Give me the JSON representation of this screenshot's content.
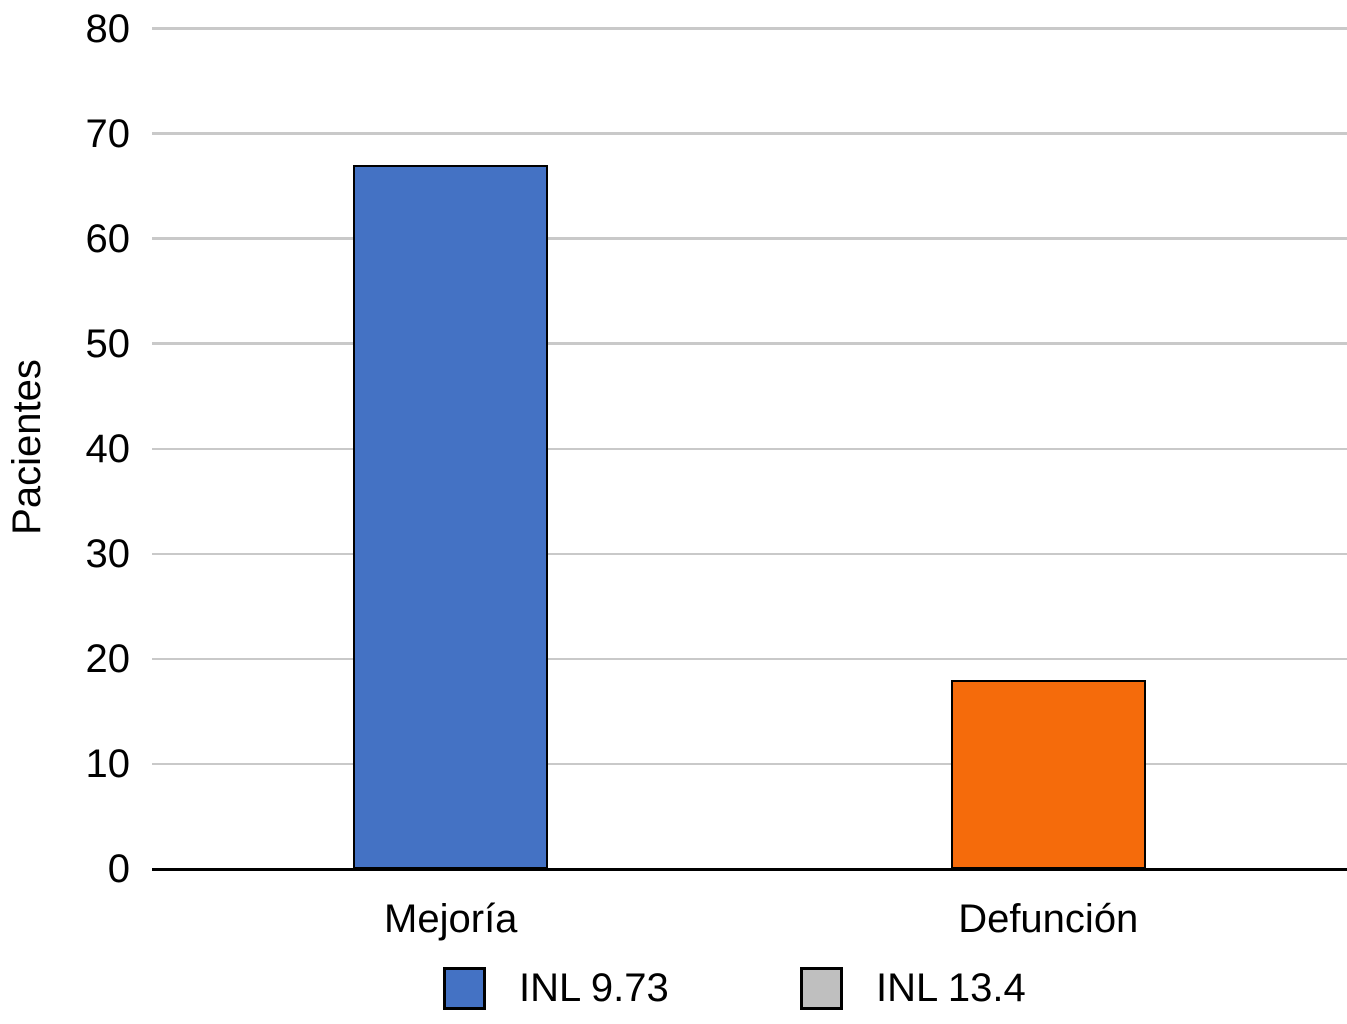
{
  "chart_data": {
    "type": "bar",
    "title": "",
    "xlabel": "",
    "ylabel": "Pacientes",
    "ylim": [
      0,
      80
    ],
    "yticks": [
      0,
      10,
      20,
      30,
      40,
      50,
      60,
      70,
      80
    ],
    "grid": true,
    "gridline_color": "#c9c9c9",
    "categories": [
      "Mejoría",
      "Defunción"
    ],
    "values": [
      67,
      18
    ],
    "bar_colors": [
      "#4472c4",
      "#f56b0b"
    ],
    "bar_border_color": "#000000",
    "axis_color": "#000000",
    "legend": {
      "position": "bottom",
      "entries": [
        {
          "label": "INL 9.73",
          "color": "#4472c4"
        },
        {
          "label": "INL 13.4",
          "color": "#bfbfbf"
        }
      ]
    }
  }
}
